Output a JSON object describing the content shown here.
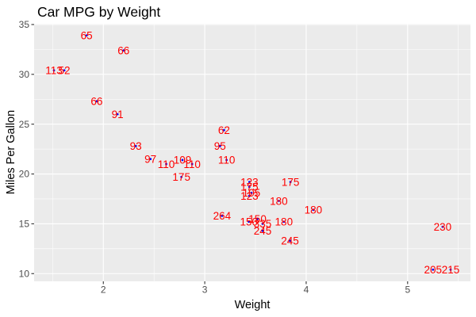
{
  "chart_data": {
    "type": "scatter",
    "title": "Car MPG by Weight",
    "xlabel": "Weight",
    "ylabel": "Miles Per Gallon",
    "x_ticks": [
      2,
      3,
      4,
      5
    ],
    "y_ticks": [
      10,
      15,
      20,
      25,
      30,
      35
    ],
    "x_minor": [
      1.5,
      2.5,
      3.5,
      4.5,
      5.5
    ],
    "y_minor": [
      12.5,
      17.5,
      22.5,
      27.5,
      32.5
    ],
    "xlim": [
      1.3175,
      5.6196
    ],
    "ylim": [
      9.225,
      35.075
    ],
    "grid": true,
    "legend": "none",
    "panel_color": "#EBEBEB",
    "grid_color": "#FFFFFF",
    "axis_text_color": "#4D4D4D",
    "tick_mark_color": "#333333",
    "point_color": "#0000FF",
    "label_color": "#FF0000",
    "points": [
      {
        "x": 2.62,
        "y": 21.0,
        "label": "110"
      },
      {
        "x": 2.875,
        "y": 21.0,
        "label": "110"
      },
      {
        "x": 2.32,
        "y": 22.8,
        "label": "93"
      },
      {
        "x": 3.215,
        "y": 21.4,
        "label": "110"
      },
      {
        "x": 3.44,
        "y": 18.7,
        "label": "175"
      },
      {
        "x": 3.46,
        "y": 18.1,
        "label": "105"
      },
      {
        "x": 3.57,
        "y": 14.3,
        "label": "245"
      },
      {
        "x": 3.19,
        "y": 24.4,
        "label": "62"
      },
      {
        "x": 3.15,
        "y": 22.8,
        "label": "95"
      },
      {
        "x": 3.44,
        "y": 19.2,
        "label": "123"
      },
      {
        "x": 3.44,
        "y": 17.8,
        "label": "123"
      },
      {
        "x": 4.07,
        "y": 16.4,
        "label": "180"
      },
      {
        "x": 3.73,
        "y": 17.3,
        "label": "180"
      },
      {
        "x": 3.78,
        "y": 15.2,
        "label": "180"
      },
      {
        "x": 5.25,
        "y": 10.4,
        "label": "205"
      },
      {
        "x": 5.424,
        "y": 10.4,
        "label": "215"
      },
      {
        "x": 5.345,
        "y": 14.7,
        "label": "230"
      },
      {
        "x": 2.2,
        "y": 32.4,
        "label": "66"
      },
      {
        "x": 1.615,
        "y": 30.4,
        "label": "52"
      },
      {
        "x": 1.835,
        "y": 33.9,
        "label": "65"
      },
      {
        "x": 2.465,
        "y": 21.5,
        "label": "97"
      },
      {
        "x": 3.52,
        "y": 15.5,
        "label": "150"
      },
      {
        "x": 3.435,
        "y": 15.2,
        "label": "150"
      },
      {
        "x": 3.84,
        "y": 13.3,
        "label": "245"
      },
      {
        "x": 3.845,
        "y": 19.2,
        "label": "175"
      },
      {
        "x": 1.935,
        "y": 27.3,
        "label": "66"
      },
      {
        "x": 2.14,
        "y": 26.0,
        "label": "91"
      },
      {
        "x": 1.513,
        "y": 30.4,
        "label": "113"
      },
      {
        "x": 3.17,
        "y": 15.8,
        "label": "264"
      },
      {
        "x": 2.77,
        "y": 19.7,
        "label": "175"
      },
      {
        "x": 3.57,
        "y": 15.0,
        "label": "335"
      },
      {
        "x": 2.78,
        "y": 21.4,
        "label": "109"
      }
    ]
  }
}
